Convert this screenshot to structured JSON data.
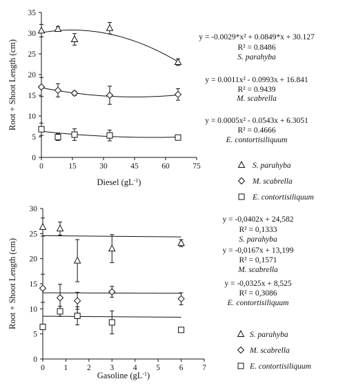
{
  "chart_data": [
    {
      "type": "scatter",
      "xlabel": "Diesel (gL",
      "xlabel_sup": "-1",
      "xlabel_close": ")",
      "ylabel": "Root + Shoot Length (cm)",
      "xlim": [
        0,
        75
      ],
      "ylim": [
        0,
        35
      ],
      "xticks": [
        0,
        15,
        30,
        45,
        60,
        75
      ],
      "yticks": [
        0,
        5,
        10,
        15,
        20,
        25,
        30,
        35
      ],
      "grid": false,
      "legend_position": "right",
      "series": [
        {
          "name": "S. parahyba",
          "marker": "triangle",
          "x": [
            0,
            8,
            16,
            33,
            66
          ],
          "y": [
            30.6,
            31.0,
            28.5,
            31.2,
            23.0
          ],
          "err": [
            1.5,
            0.6,
            1.4,
            1.4,
            0.8
          ],
          "fit": {
            "kind": "poly2",
            "a": -0.0029,
            "b": 0.0849,
            "c": 30.127
          },
          "equation": "y = -0.0029*x² + 0.0849*x + 30.127",
          "r2": "R² = 0.8486",
          "label": "S. parahyba"
        },
        {
          "name": "M. scabrella",
          "marker": "diamond",
          "x": [
            0,
            8,
            16,
            33,
            66
          ],
          "y": [
            17.0,
            16.2,
            15.5,
            15.0,
            15.2
          ],
          "err": [
            2.3,
            1.6,
            0.5,
            2.2,
            1.4
          ],
          "fit": {
            "kind": "poly2",
            "a": 0.0011,
            "b": -0.0993,
            "c": 16.841
          },
          "equation": "y = 0.0011x² - 0.0993x + 16.841",
          "r2": "R² = 0.9439",
          "label": "M. scabrella"
        },
        {
          "name": "E. contortisiliquum",
          "marker": "square",
          "x": [
            0,
            8,
            16,
            33,
            66
          ],
          "y": [
            6.8,
            4.9,
            5.5,
            5.3,
            4.8
          ],
          "err": [
            1.5,
            0.8,
            1.4,
            1.3,
            0.6
          ],
          "fit": {
            "kind": "poly2",
            "a": 0.0005,
            "b": -0.0543,
            "c": 6.3051
          },
          "equation": "y = 0.0005x² - 0.0543x + 6.3051",
          "r2": "R² = 0.4666",
          "label": "E. contortisiliquum"
        }
      ]
    },
    {
      "type": "scatter",
      "xlabel": "Gasoline (gL",
      "xlabel_sup": "-1",
      "xlabel_close": ")",
      "ylabel": "Root + Shoot Length (cm)",
      "xlim": [
        0,
        7
      ],
      "ylim": [
        0,
        30
      ],
      "xticks": [
        0,
        1,
        2,
        3,
        4,
        5,
        6,
        7
      ],
      "yticks": [
        0,
        5,
        10,
        15,
        20,
        25,
        30
      ],
      "grid": false,
      "legend_position": "right",
      "series": [
        {
          "name": "S. parahyba",
          "marker": "triangle",
          "x": [
            0,
            0.75,
            1.5,
            3,
            6
          ],
          "y": [
            26.3,
            26.0,
            19.6,
            22.0,
            23.1
          ],
          "err": [
            1.8,
            1.3,
            4.2,
            2.8,
            0.7
          ],
          "fit": {
            "kind": "linear",
            "m": -0.0402,
            "b": 24.582
          },
          "equation": "y = -0,0402x + 24,582",
          "r2": "R² = 0,1333",
          "label": "S. parahyba"
        },
        {
          "name": "M. scabrella",
          "marker": "diamond",
          "x": [
            0,
            0.75,
            1.5,
            3,
            6
          ],
          "y": [
            14.1,
            12.2,
            11.6,
            13.4,
            12.0
          ],
          "err": [
            2.8,
            2.7,
            1.7,
            1.1,
            1.2
          ],
          "fit": {
            "kind": "linear",
            "m": -0.0167,
            "b": 13.199
          },
          "equation": "y = -0,0167x + 13,199",
          "r2": "R² = 0,1571",
          "label": "M. scabrella"
        },
        {
          "name": "E. contortisiliquum",
          "marker": "square",
          "x": [
            0,
            0.75,
            1.5,
            3,
            6
          ],
          "y": [
            6.4,
            9.5,
            8.6,
            7.3,
            5.8
          ],
          "err": [
            0.5,
            1.0,
            1.8,
            2.3,
            0.5
          ],
          "fit": {
            "kind": "linear",
            "m": -0.0325,
            "b": 8.525
          },
          "equation": "y = -0,0325x + 8,525",
          "r2": "R² = 0,3086",
          "label": "E. contortisiliquum"
        }
      ]
    }
  ]
}
